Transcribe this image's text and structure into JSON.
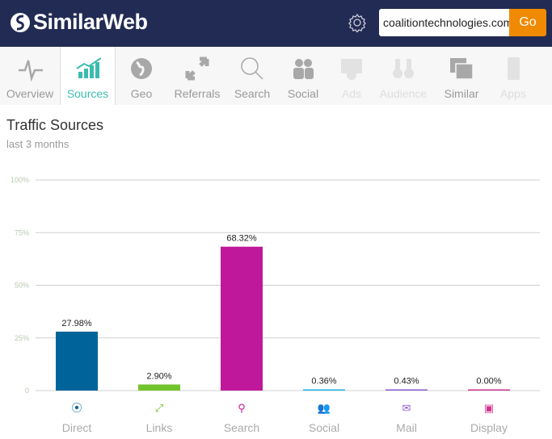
{
  "header": {
    "logo": "SimilarWeb",
    "search_value": "coalitiontechnologies.com",
    "go_label": "Go"
  },
  "nav": [
    {
      "label": "Overview",
      "icon": "pulse-icon",
      "state": "normal"
    },
    {
      "label": "Sources",
      "icon": "bar-trend-icon",
      "state": "active"
    },
    {
      "label": "Geo",
      "icon": "globe-icon",
      "state": "normal"
    },
    {
      "label": "Referrals",
      "icon": "arrows-icon",
      "state": "normal"
    },
    {
      "label": "Search",
      "icon": "magnifier-icon",
      "state": "normal"
    },
    {
      "label": "Social",
      "icon": "people-icon",
      "state": "normal"
    },
    {
      "label": "Ads",
      "icon": "ads-icon",
      "state": "disabled"
    },
    {
      "label": "Audience",
      "icon": "binoculars-icon",
      "state": "disabled"
    },
    {
      "label": "Similar",
      "icon": "windows-icon",
      "state": "normal"
    },
    {
      "label": "Apps",
      "icon": "phone-icon",
      "state": "disabled"
    }
  ],
  "section": {
    "title": "Traffic Sources",
    "subtitle": "last 3 months"
  },
  "chart_data": {
    "type": "bar",
    "categories": [
      "Direct",
      "Links",
      "Search",
      "Social",
      "Mail",
      "Display"
    ],
    "values": [
      27.98,
      2.9,
      68.32,
      0.36,
      0.43,
      0.0
    ],
    "data_labels": [
      "27.98%",
      "2.90%",
      "68.32%",
      "0.36%",
      "0.43%",
      "0.00%"
    ],
    "colors": [
      "#00649b",
      "#72c42d",
      "#c0189a",
      "#1eb2e6",
      "#8c5ad2",
      "#d0338f"
    ],
    "icons": [
      "direct-icon",
      "links-icon",
      "search-icon",
      "social-icon",
      "mail-icon",
      "display-icon"
    ],
    "ylim": [
      0,
      100
    ],
    "yticks": [
      0,
      25,
      50,
      75,
      100
    ],
    "ytick_labels": [
      "0",
      "25%",
      "50%",
      "75%",
      "100%"
    ],
    "grid": true
  }
}
